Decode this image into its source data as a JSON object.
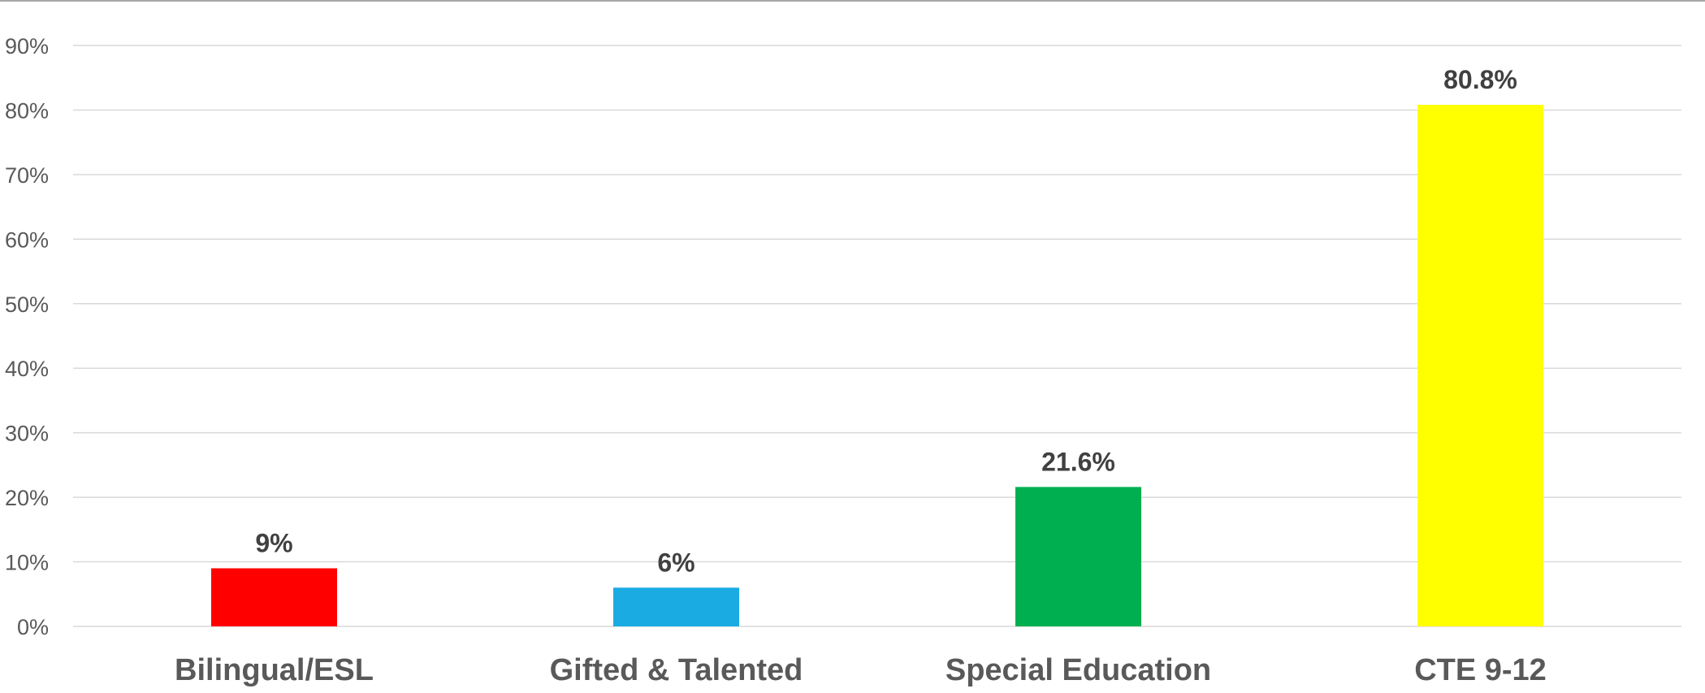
{
  "chart_data": {
    "type": "bar",
    "title": "",
    "xlabel": "",
    "ylabel": "",
    "categories": [
      "Bilingual/ESL",
      "Gifted & Talented",
      "Special Education",
      "CTE 9-12"
    ],
    "values": [
      9,
      6,
      21.6,
      80.8
    ],
    "data_labels": [
      "9%",
      "6%",
      "21.6%",
      "80.8%"
    ],
    "colors": [
      "#ff0000",
      "#1aabe3",
      "#00b050",
      "#ffff00"
    ],
    "ylim": [
      0,
      90
    ],
    "y_ticks": [
      {
        "value": 0,
        "label": "0%"
      },
      {
        "value": 10,
        "label": "10%"
      },
      {
        "value": 20,
        "label": "20%"
      },
      {
        "value": 30,
        "label": "30%"
      },
      {
        "value": 40,
        "label": "40%"
      },
      {
        "value": 50,
        "label": "50%"
      },
      {
        "value": 60,
        "label": "60%"
      },
      {
        "value": 70,
        "label": "70%"
      },
      {
        "value": 80,
        "label": "80%"
      },
      {
        "value": 90,
        "label": "90%"
      }
    ],
    "grid": true,
    "legend": "none"
  }
}
